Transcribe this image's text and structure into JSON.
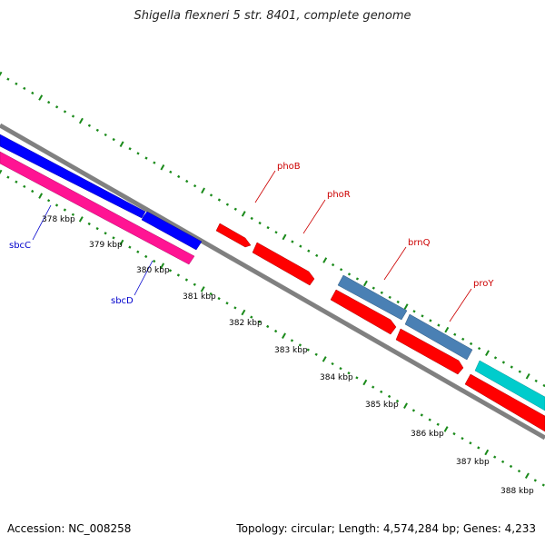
{
  "title": "Shigella flexneri 5 str. 8401, complete genome",
  "footer": {
    "accession": "Accession: NC_008258",
    "summary": "Topology: circular; Length: 4,574,284 bp; Genes: 4,233"
  },
  "colors": {
    "backbone": "#808080",
    "tick": "#1a8a1a",
    "red_gene": "#ff0000",
    "blue_gene": "#0000ff",
    "pink_gene": "#ff1493",
    "steelblue_gene": "#4a80b4",
    "cyan_gene": "#00cccc",
    "red_label": "#cc0000",
    "blue_label": "#0000cc"
  },
  "scale_labels": [
    "378 kbp",
    "379 kbp",
    "380 kbp",
    "381 kbp",
    "382 kbp",
    "383 kbp",
    "384 kbp",
    "385 kbp",
    "386 kbp",
    "387 kbp",
    "388 kbp"
  ],
  "gene_labels": [
    {
      "id": "phoB",
      "text": "phoB",
      "side": "top"
    },
    {
      "id": "phoR",
      "text": "phoR",
      "side": "top"
    },
    {
      "id": "brnQ",
      "text": "brnQ",
      "side": "top"
    },
    {
      "id": "proY",
      "text": "proY",
      "side": "top"
    },
    {
      "id": "sbcC",
      "text": "sbcC",
      "side": "bottom"
    },
    {
      "id": "sbcD",
      "text": "sbcD",
      "side": "bottom"
    }
  ]
}
